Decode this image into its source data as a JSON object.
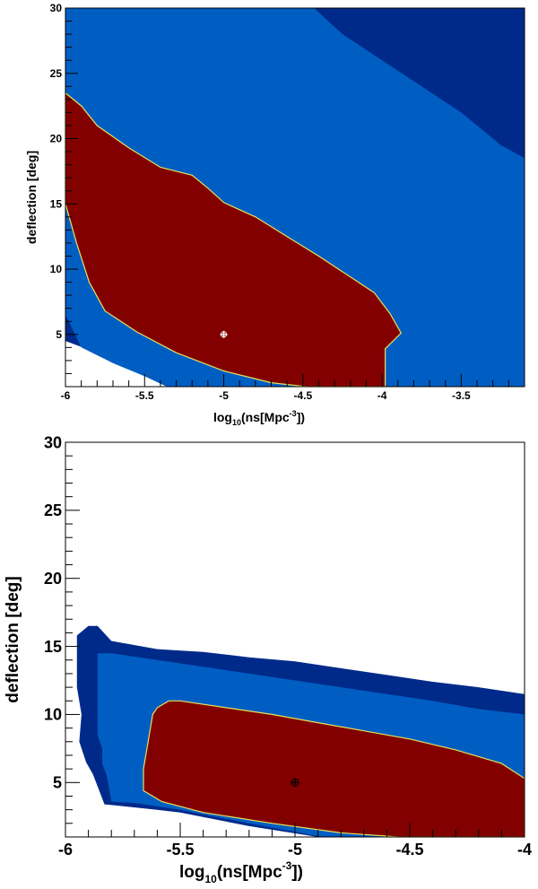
{
  "chart_data": [
    {
      "type": "contour",
      "xlabel_base": "log",
      "xlabel_sub": "10",
      "xlabel_main": "(ns[Mpc",
      "xlabel_sup": "-3",
      "xlabel_end": "])",
      "ylabel": "deflection [deg]",
      "xlim": [
        -6,
        -3.1
      ],
      "ylim": [
        1,
        30
      ],
      "x_ticks": [
        -6,
        -5.5,
        -5,
        -4.5,
        -4,
        -3.5
      ],
      "x_tick_labels": [
        "-6",
        "-5.5",
        "-5",
        "-4.5",
        "-4",
        "-3.5"
      ],
      "y_ticks": [
        5,
        10,
        15,
        20,
        25,
        30
      ],
      "y_tick_labels": [
        "5",
        "10",
        "15",
        "20",
        "25",
        "30"
      ],
      "best_fit": {
        "x": -5,
        "y": 5
      },
      "colors": {
        "outer": "#002a8a",
        "middle": "#005ec2",
        "inner": "#820000",
        "edge": "#e8e05a",
        "marker": "#ffffff"
      },
      "regions": [
        {
          "level": "outer",
          "points": [
            [
              -6,
              30
            ],
            [
              -3.1,
              30
            ],
            [
              -3.1,
              1
            ],
            [
              -5.3,
              1
            ],
            [
              -5.42,
              1.6
            ],
            [
              -5.6,
              2.6
            ],
            [
              -5.8,
              3.6
            ],
            [
              -6,
              4.5
            ]
          ]
        },
        {
          "level": "middle",
          "points": [
            [
              -6,
              30
            ],
            [
              -4.43,
              30
            ],
            [
              -4.25,
              28
            ],
            [
              -4.0,
              26
            ],
            [
              -3.75,
              24
            ],
            [
              -3.5,
              22
            ],
            [
              -3.25,
              19.5
            ],
            [
              -3.1,
              18.5
            ],
            [
              -3.1,
              1
            ],
            [
              -5.36,
              1
            ],
            [
              -5.5,
              1.8
            ],
            [
              -5.7,
              2.8
            ],
            [
              -5.9,
              4
            ],
            [
              -6,
              6.5
            ]
          ]
        },
        {
          "level": "inner",
          "points": [
            [
              -6,
              23.5
            ],
            [
              -5.9,
              22.5
            ],
            [
              -5.8,
              21
            ],
            [
              -5.6,
              19.3
            ],
            [
              -5.4,
              17.8
            ],
            [
              -5.3,
              17.5
            ],
            [
              -5.2,
              17.2
            ],
            [
              -5.1,
              16.2
            ],
            [
              -5.0,
              15.1
            ],
            [
              -4.8,
              14
            ],
            [
              -4.6,
              12.5
            ],
            [
              -4.4,
              11
            ],
            [
              -4.2,
              9.4
            ],
            [
              -4.05,
              8.2
            ],
            [
              -3.95,
              6.6
            ],
            [
              -3.88,
              5.1
            ],
            [
              -3.98,
              3.9
            ],
            [
              -3.98,
              1
            ],
            [
              -4.48,
              1
            ],
            [
              -4.7,
              1.3
            ],
            [
              -5.0,
              2.2
            ],
            [
              -5.3,
              3.6
            ],
            [
              -5.55,
              5.2
            ],
            [
              -5.75,
              6.8
            ],
            [
              -5.85,
              9
            ],
            [
              -5.93,
              12
            ],
            [
              -6,
              15
            ]
          ]
        }
      ]
    },
    {
      "type": "contour",
      "xlabel_base": "log",
      "xlabel_sub": "10",
      "xlabel_main": "(ns[Mpc",
      "xlabel_sup": "-3",
      "xlabel_end": "])",
      "ylabel": "deflection [deg]",
      "xlim": [
        -6,
        -4
      ],
      "ylim": [
        1,
        30
      ],
      "x_ticks": [
        -6,
        -5.5,
        -5,
        -4.5,
        -4
      ],
      "x_tick_labels": [
        "-6",
        "-5.5",
        "-5",
        "-4.5",
        "-4"
      ],
      "y_ticks": [
        5,
        10,
        15,
        20,
        25,
        30
      ],
      "y_tick_labels": [
        "5",
        "10",
        "15",
        "20",
        "25",
        "30"
      ],
      "best_fit": {
        "x": -5,
        "y": 5
      },
      "colors": {
        "outer": "#002a8a",
        "middle": "#005ec2",
        "inner": "#820000",
        "edge": "#e8e05a",
        "marker": "#000000"
      },
      "regions": [
        {
          "level": "outer",
          "points": [
            [
              -5.95,
              15.8
            ],
            [
              -5.9,
              16.5
            ],
            [
              -5.86,
              16.5
            ],
            [
              -5.8,
              15.4
            ],
            [
              -5.6,
              14.8
            ],
            [
              -5.4,
              14.6
            ],
            [
              -5.2,
              14.2
            ],
            [
              -5.0,
              13.9
            ],
            [
              -4.8,
              13.4
            ],
            [
              -4.6,
              12.9
            ],
            [
              -4.4,
              12.4
            ],
            [
              -4.2,
              12
            ],
            [
              -4,
              11.5
            ],
            [
              -4,
              1
            ],
            [
              -4.9,
              1
            ],
            [
              -5.2,
              1.8
            ],
            [
              -5.5,
              2.8
            ],
            [
              -5.6,
              3
            ],
            [
              -5.83,
              3.4
            ],
            [
              -5.88,
              5.6
            ],
            [
              -5.91,
              6.5
            ],
            [
              -5.94,
              8
            ],
            [
              -5.93,
              10
            ],
            [
              -5.95,
              12
            ],
            [
              -5.95,
              14
            ]
          ]
        },
        {
          "level": "middle",
          "points": [
            [
              -5.86,
              14.5
            ],
            [
              -5.8,
              14.5
            ],
            [
              -5.6,
              14
            ],
            [
              -5.4,
              13.5
            ],
            [
              -5.2,
              13
            ],
            [
              -5.0,
              12.5
            ],
            [
              -4.8,
              12
            ],
            [
              -4.6,
              11.5
            ],
            [
              -4.4,
              11
            ],
            [
              -4.2,
              10.4
            ],
            [
              -4,
              10
            ],
            [
              -4,
              1
            ],
            [
              -4.88,
              1
            ],
            [
              -5.2,
              2
            ],
            [
              -5.5,
              3
            ],
            [
              -5.7,
              3.5
            ],
            [
              -5.8,
              3.6
            ],
            [
              -5.82,
              5.5
            ],
            [
              -5.84,
              6.4
            ],
            [
              -5.84,
              7.5
            ],
            [
              -5.86,
              8.5
            ],
            [
              -5.86,
              10
            ],
            [
              -5.86,
              11.5
            ],
            [
              -5.86,
              13
            ]
          ]
        },
        {
          "level": "inner",
          "points": [
            [
              -5.6,
              10.5
            ],
            [
              -5.55,
              11
            ],
            [
              -5.5,
              11
            ],
            [
              -5.3,
              10.5
            ],
            [
              -5.1,
              10
            ],
            [
              -4.9,
              9.4
            ],
            [
              -4.7,
              8.8
            ],
            [
              -4.5,
              8.2
            ],
            [
              -4.3,
              7.4
            ],
            [
              -4.1,
              6.4
            ],
            [
              -4,
              5.3
            ],
            [
              -4,
              1
            ],
            [
              -4.55,
              1
            ],
            [
              -4.8,
              1.3
            ],
            [
              -5.1,
              2
            ],
            [
              -5.4,
              2.8
            ],
            [
              -5.58,
              3.6
            ],
            [
              -5.66,
              4.4
            ],
            [
              -5.66,
              6
            ],
            [
              -5.64,
              8
            ],
            [
              -5.62,
              10
            ]
          ]
        }
      ]
    }
  ]
}
